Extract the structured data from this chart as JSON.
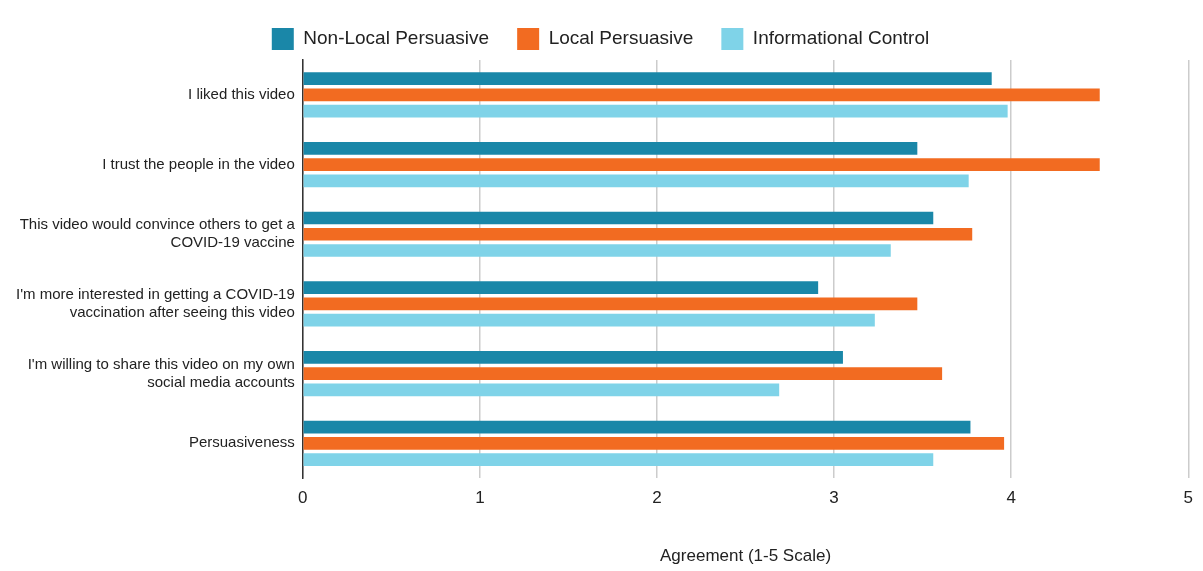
{
  "chart_data": {
    "type": "bar",
    "orientation": "horizontal",
    "xlabel": "Agreement (1-5 Scale)",
    "categories": [
      "I liked this video",
      "I trust the people in the video",
      "This video would convince others to get a COVID-19 vaccine",
      "I'm more interested in getting a COVID-19 vaccination after seeing this video",
      "I'm willing to share this video on my own social media accounts",
      "Persuasiveness"
    ],
    "series": [
      {
        "name": "Non-Local Persuasive",
        "color": "#1a87a8",
        "values": [
          3.89,
          3.47,
          3.56,
          2.91,
          3.05,
          3.77
        ]
      },
      {
        "name": "Local Persuasive",
        "color": "#f26b21",
        "values": [
          4.5,
          4.5,
          3.78,
          3.47,
          3.61,
          3.96
        ]
      },
      {
        "name": "Informational Control",
        "color": "#7fd3e8",
        "values": [
          3.98,
          3.76,
          3.32,
          3.23,
          2.69,
          3.56
        ]
      }
    ],
    "xlim": [
      0,
      5
    ],
    "xticks": [
      0,
      1,
      2,
      3,
      4,
      5
    ],
    "grid": "x",
    "legend": "top"
  }
}
